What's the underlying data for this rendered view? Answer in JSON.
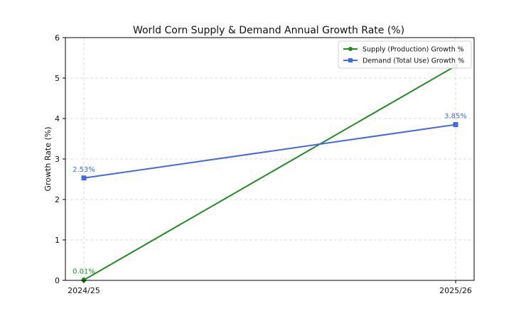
{
  "chart_data": {
    "type": "line",
    "title": "World Corn Supply & Demand Annual Growth Rate (%)",
    "xlabel": "",
    "ylabel": "Growth Rate (%)",
    "categories": [
      "2024/25",
      "2025/26"
    ],
    "ylim": [
      0,
      6
    ],
    "yticks": [
      "0",
      "1",
      "2",
      "3",
      "4",
      "5",
      "6"
    ],
    "grid": true,
    "legend_position": "top-right",
    "series": [
      {
        "name": "Supply (Production) Growth %",
        "values": [
          0.01,
          5.3
        ],
        "color": "#228b22",
        "marker": "circle",
        "point_labels": [
          "0.01%",
          ""
        ]
      },
      {
        "name": "Demand (Total Use) Growth %",
        "values": [
          2.53,
          3.85
        ],
        "color": "#4169e1",
        "marker": "square",
        "point_labels": [
          "2.53%",
          "3.85%"
        ]
      }
    ]
  }
}
